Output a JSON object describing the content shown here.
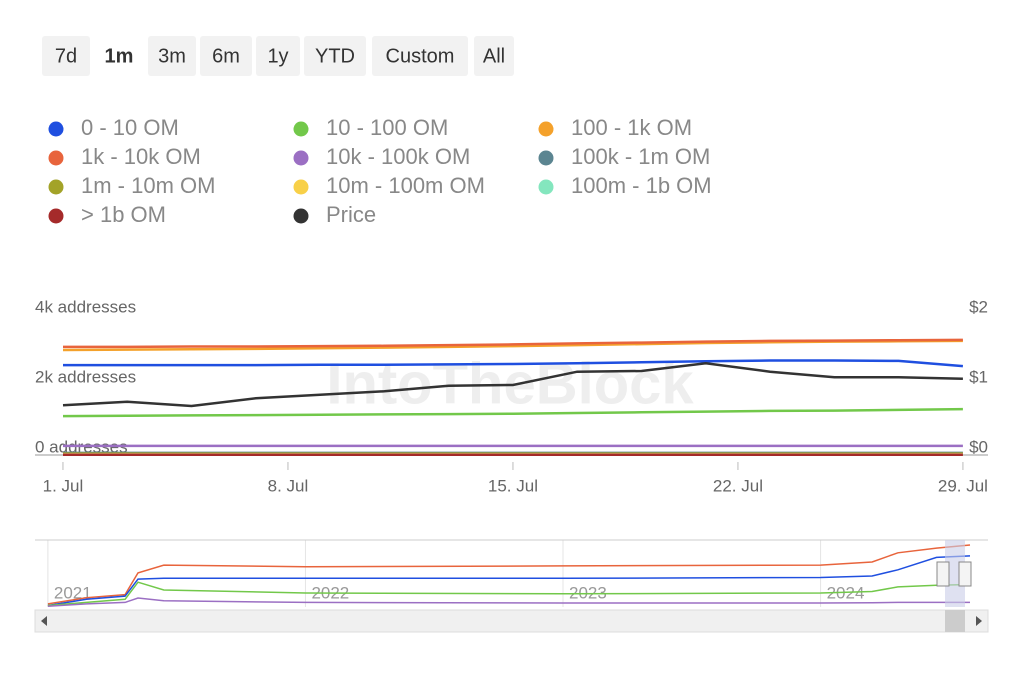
{
  "range_buttons": [
    "7d",
    "1m",
    "3m",
    "6m",
    "1y",
    "YTD",
    "Custom",
    "All"
  ],
  "selected_range_index": 1,
  "watermark": "IntoTheBlock",
  "chart_data": {
    "type": "line",
    "x": [
      1,
      3,
      5,
      7,
      9,
      11,
      13,
      15,
      17,
      19,
      21,
      23,
      25,
      27,
      29
    ],
    "xlim": [
      0.13,
      29.78
    ],
    "xticks": [
      {
        "value": 1,
        "label": "1. Jul"
      },
      {
        "value": 8,
        "label": "8. Jul"
      },
      {
        "value": 15,
        "label": "15. Jul"
      },
      {
        "value": 22,
        "label": "22. Jul"
      },
      {
        "value": 29,
        "label": "29. Jul"
      }
    ],
    "ylim": [
      0,
      4000
    ],
    "yticks": [
      {
        "value": 0,
        "label": "0 addresses"
      },
      {
        "value": 2000,
        "label": "2k addresses"
      },
      {
        "value": 4000,
        "label": "4k addresses"
      }
    ],
    "y2lim": [
      0,
      2
    ],
    "y2ticks": [
      {
        "value": 0,
        "label": "$0"
      },
      {
        "value": 1,
        "label": "$1"
      },
      {
        "value": 2,
        "label": "$2"
      }
    ],
    "series": [
      {
        "name": "0 - 10 OM",
        "color": "#1f4fe0",
        "values": [
          2570,
          2570,
          2570,
          2570,
          2580,
          2580,
          2590,
          2600,
          2620,
          2650,
          2680,
          2700,
          2700,
          2690,
          2540
        ]
      },
      {
        "name": "10 - 100 OM",
        "color": "#72c84a",
        "values": [
          1110,
          1120,
          1130,
          1140,
          1150,
          1160,
          1170,
          1180,
          1200,
          1220,
          1240,
          1260,
          1270,
          1290,
          1310
        ]
      },
      {
        "name": "100 - 1k OM",
        "color": "#f4a12b",
        "values": [
          3000,
          3010,
          3020,
          3030,
          3050,
          3070,
          3090,
          3110,
          3140,
          3170,
          3200,
          3220,
          3240,
          3250,
          3260
        ]
      },
      {
        "name": "1k - 10k OM",
        "color": "#e8643c",
        "values": [
          3090,
          3090,
          3100,
          3100,
          3110,
          3120,
          3140,
          3160,
          3190,
          3210,
          3240,
          3260,
          3270,
          3280,
          3290
        ]
      },
      {
        "name": "10k - 100k OM",
        "color": "#9b6fc3",
        "values": [
          260,
          260,
          260,
          260,
          260,
          260,
          260,
          260,
          260,
          260,
          260,
          260,
          260,
          260,
          260
        ]
      },
      {
        "name": "100k - 1m OM",
        "color": "#5b8591",
        "values": [
          60,
          60,
          60,
          60,
          60,
          60,
          60,
          60,
          60,
          60,
          60,
          60,
          60,
          60,
          60
        ]
      },
      {
        "name": "1m - 10m OM",
        "color": "#a3a328",
        "values": [
          40,
          40,
          40,
          40,
          40,
          40,
          40,
          40,
          40,
          40,
          40,
          40,
          40,
          40,
          40
        ]
      },
      {
        "name": "10m - 100m OM",
        "color": "#f8d048",
        "values": [
          20,
          20,
          20,
          20,
          20,
          20,
          20,
          20,
          20,
          20,
          20,
          20,
          20,
          20,
          20
        ]
      },
      {
        "name": "100m - 1b OM",
        "color": "#84e6be",
        "values": [
          10,
          10,
          10,
          10,
          10,
          10,
          10,
          10,
          10,
          10,
          10,
          10,
          10,
          10,
          10
        ]
      },
      {
        "name": "> 1b OM",
        "color": "#a52a2a",
        "values": [
          5,
          5,
          5,
          5,
          5,
          5,
          5,
          5,
          5,
          5,
          5,
          5,
          5,
          5,
          5
        ]
      },
      {
        "name": "Price",
        "color": "#333333",
        "axis": "y2",
        "values": [
          0.71,
          0.76,
          0.7,
          0.81,
          0.86,
          0.91,
          0.99,
          1.0,
          1.19,
          1.2,
          1.31,
          1.19,
          1.11,
          1.11,
          1.09
        ]
      }
    ]
  },
  "navigator": {
    "x": [
      2021.0,
      2021.15,
      2021.3,
      2021.35,
      2021.45,
      2022.0,
      2023.0,
      2024.0,
      2024.2,
      2024.3,
      2024.45,
      2024.58
    ],
    "xlim": [
      2020.95,
      2024.65
    ],
    "xticks": [
      {
        "value": 2021,
        "label": "2021"
      },
      {
        "value": 2022,
        "label": "2022"
      },
      {
        "value": 2023,
        "label": "2023"
      },
      {
        "value": 2024,
        "label": "2024"
      }
    ],
    "ylim": [
      0,
      4000
    ],
    "series": [
      {
        "color": "#e8643c",
        "values": [
          200,
          600,
          800,
          2200,
          2700,
          2600,
          2650,
          2700,
          2900,
          3500,
          3800,
          4000
        ]
      },
      {
        "color": "#1f4fe0",
        "values": [
          100,
          500,
          700,
          1800,
          1850,
          1850,
          1850,
          1900,
          2000,
          2400,
          3200,
          3300
        ]
      },
      {
        "color": "#72c84a",
        "values": [
          100,
          300,
          500,
          1600,
          1100,
          900,
          850,
          900,
          1000,
          1300,
          1400,
          1450
        ]
      },
      {
        "color": "#9b6fc3",
        "values": [
          50,
          200,
          300,
          580,
          400,
          300,
          260,
          260,
          270,
          300,
          300,
          300
        ]
      }
    ]
  }
}
